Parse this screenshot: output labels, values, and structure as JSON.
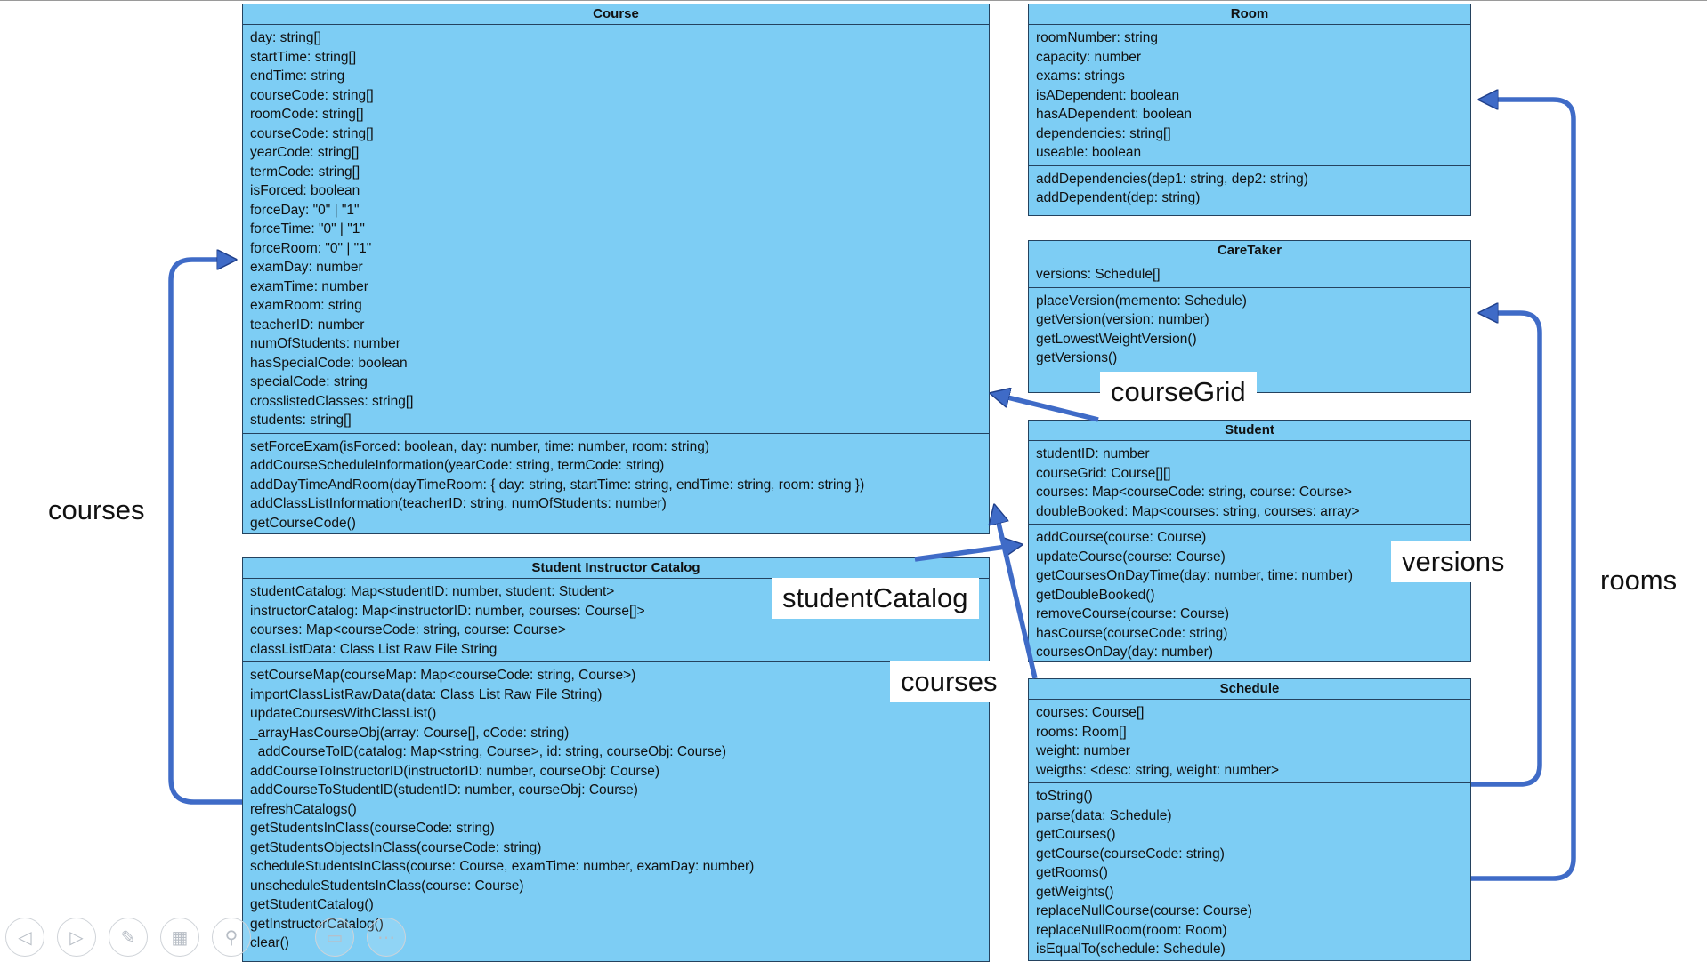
{
  "classes": {
    "course": {
      "title": "Course",
      "attributes": [
        "day: string[]",
        "startTime: string[]",
        "endTime: string",
        "courseCode: string[]",
        "roomCode: string[]",
        "courseCode: string[]",
        "yearCode: string[]",
        "termCode: string[]",
        "isForced: boolean",
        "forceDay: \"0\" | \"1\"",
        "forceTime: \"0\" | \"1\"",
        "forceRoom: \"0\" | \"1\"",
        "examDay: number",
        "examTime: number",
        "examRoom: string",
        "teacherID: number",
        "numOfStudents: number",
        "hasSpecialCode: boolean",
        "specialCode: string",
        "crosslistedClasses: string[]",
        "students: string[]"
      ],
      "methods": [
        "setForceExam(isForced: boolean, day: number, time: number, room: string)",
        "addCourseScheduleInformation(yearCode: string, termCode: string)",
        "addDayTimeAndRoom(dayTimeRoom: { day: string, startTime: string, endTime: string, room: string })",
        "addClassListInformation(teacherID: string, numOfStudents: number)",
        "getCourseCode()"
      ]
    },
    "catalog": {
      "title": "Student Instructor Catalog",
      "attributes": [
        "studentCatalog: Map<studentID: number, student: Student>",
        "instructorCatalog: Map<instructorID: number, courses: Course[]>",
        "courses: Map<courseCode: string, course: Course>",
        "classListData: Class List Raw File String"
      ],
      "methods": [
        "setCourseMap(courseMap: Map<courseCode: string, Course>)",
        "importClassListRawData(data: Class List Raw File String)",
        "updateCoursesWithClassList()",
        "_arrayHasCourseObj(array: Course[], cCode: string)",
        "_addCourseToID(catalog: Map<string, Course>, id: string, courseObj: Course)",
        "addCourseToInstructorID(instructorID: number, courseObj: Course)",
        "addCourseToStudentID(studentID: number, courseObj: Course)",
        "refreshCatalogs()",
        "getStudentsInClass(courseCode: string)",
        "getStudentsObjectsInClass(courseCode: string)",
        "scheduleStudentsInClass(course: Course, examTime: number, examDay: number)",
        "unscheduleStudentsInClass(course: Course)",
        "getStudentCatalog()",
        "getInstructorCatalog()",
        "clear()"
      ]
    },
    "room": {
      "title": "Room",
      "attributes": [
        "roomNumber: string",
        "capacity: number",
        "exams: strings",
        "isADependent: boolean",
        "hasADependent: boolean",
        "dependencies: string[]",
        "useable: boolean"
      ],
      "methods": [
        "addDependencies(dep1: string, dep2: string)",
        "addDependent(dep: string)"
      ]
    },
    "caretaker": {
      "title": "CareTaker",
      "attributes": [
        "versions: Schedule[]"
      ],
      "methods": [
        "placeVersion(memento: Schedule)",
        "getVersion(version: number)",
        "getLowestWeightVersion()",
        "getVersions()"
      ]
    },
    "student": {
      "title": "Student",
      "attributes": [
        "studentID: number",
        "courseGrid: Course[][]",
        "courses: Map<courseCode: string, course: Course>",
        "doubleBooked: Map<courses: string, courses: array>"
      ],
      "methods": [
        "addCourse(course: Course)",
        "updateCourse(course: Course)",
        "getCoursesOnDayTime(day: number, time: number)",
        "getDoubleBooked()",
        "removeCourse(course: Course)",
        "hasCourse(courseCode: string)",
        "coursesOnDay(day: number)"
      ]
    },
    "schedule": {
      "title": "Schedule",
      "attributes": [
        "courses: Course[]",
        "rooms: Room[]",
        "weight: number",
        "weigths: <desc: string, weight: number>"
      ],
      "methods": [
        "toString()",
        "parse(data: Schedule)",
        "getCourses()",
        "getCourse(courseCode: string)",
        "getRooms()",
        "getWeights()",
        "replaceNullCourse(course: Course)",
        "replaceNullRoom(room: Room)",
        "isEqualTo(schedule: Schedule)"
      ]
    }
  },
  "labels": {
    "courses_left": "courses",
    "course_grid": "courseGrid",
    "student_catalog": "studentCatalog",
    "courses_mid": "courses",
    "versions": "versions",
    "rooms": "rooms"
  },
  "colors": {
    "class_fill": "#7dcdf4",
    "class_border": "#24425e",
    "arrow": "#3f6bc7",
    "arrow_outline": "#1f3f8a"
  },
  "toolbar": {
    "icons": [
      "previous-icon",
      "next-icon",
      "pen-icon",
      "slides-icon",
      "zoom-icon",
      "subtitles-off-icon",
      "more-icon"
    ]
  }
}
